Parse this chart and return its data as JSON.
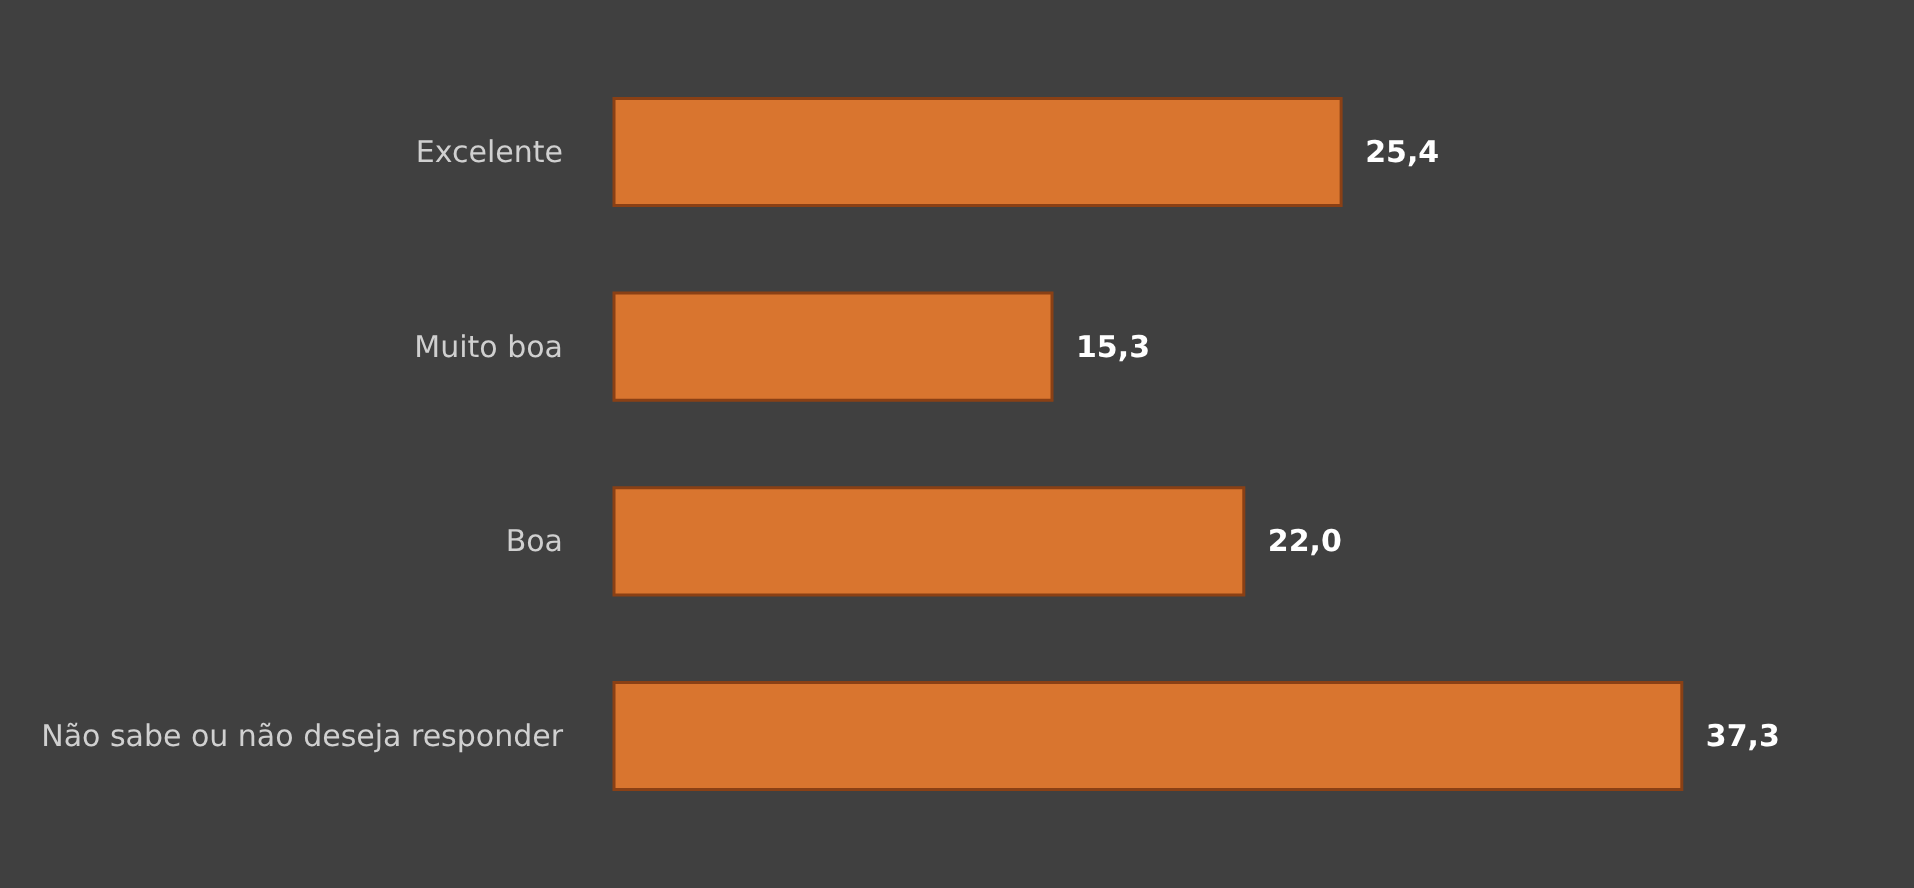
{
  "chart_data": {
    "type": "bar",
    "orientation": "horizontal",
    "categories": [
      "Excelente",
      "Muito boa",
      "Boa",
      "Não sabe ou não deseja responder"
    ],
    "values": [
      25.4,
      15.3,
      22.0,
      37.3
    ],
    "value_labels": [
      "25,4",
      "15,3",
      "22,0",
      "37,3"
    ],
    "color": "#d9752f",
    "tick_labels": "y"
  }
}
